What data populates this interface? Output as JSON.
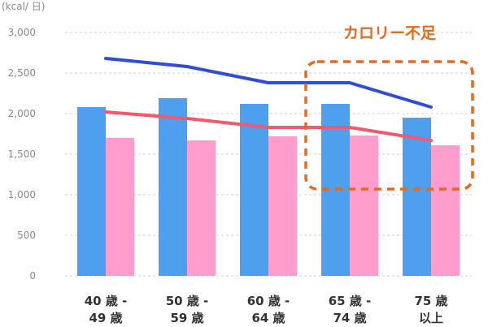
{
  "chart_data": {
    "type": "bar",
    "ylabel": "(kcal/ 日)",
    "ylim": [
      0,
      3000
    ],
    "yticks": [
      "0",
      "500",
      "1,000",
      "1,500",
      "2,000",
      "2,500",
      "3,000"
    ],
    "ytick_values": [
      0,
      500,
      1000,
      1500,
      2000,
      2500,
      3000
    ],
    "categories": [
      [
        "40 歳 -",
        "49 歳"
      ],
      [
        "50 歳 -",
        "59 歳"
      ],
      [
        "60 歳 -",
        "64 歳"
      ],
      [
        "65 歳 -",
        "74 歳"
      ],
      [
        "75 歳",
        "以上"
      ]
    ],
    "series": [
      {
        "type": "bar",
        "color": "#4ea0ee",
        "values": [
          2080,
          2190,
          2120,
          2120,
          1950
        ]
      },
      {
        "type": "bar",
        "color": "#ff9dcc",
        "values": [
          1700,
          1670,
          1720,
          1730,
          1610
        ]
      },
      {
        "type": "line",
        "color": "#2f4ed6",
        "values": [
          2680,
          2580,
          2380,
          2380,
          2080
        ]
      },
      {
        "type": "line",
        "color": "#f2586e",
        "values": [
          2020,
          1940,
          1830,
          1830,
          1670
        ]
      }
    ],
    "grid": true,
    "annotation": {
      "text": "カロリー不足",
      "color": "#e56a1f",
      "highlight_categories": [
        "65 歳 - 74 歳",
        "75 歳 以上"
      ]
    }
  }
}
